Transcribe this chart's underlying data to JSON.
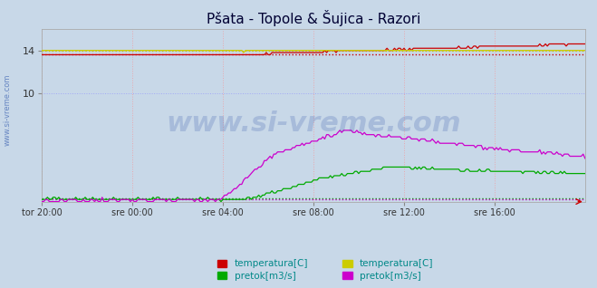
{
  "title": "Pšata - Topole & Šujica - Razori",
  "title_fontsize": 11,
  "fig_bg_color": "#c8d8e8",
  "plot_bg_color": "#c8d8e8",
  "ylim": [
    0,
    16
  ],
  "xlim": [
    0,
    288
  ],
  "xtick_positions": [
    0,
    48,
    96,
    144,
    192,
    240
  ],
  "xtick_labels": [
    "tor 20:00",
    "sre 00:00",
    "sre 04:00",
    "sre 08:00",
    "sre 12:00",
    "sre 16:00"
  ],
  "ytick_positions": [
    10,
    14
  ],
  "ytick_labels": [
    "10",
    "14"
  ],
  "watermark": "www.si-vreme.com",
  "watermark_color": "#3355aa",
  "watermark_alpha": 0.22,
  "watermark_fontsize": 22,
  "side_label": "www.si-vreme.com",
  "side_label_color": "#5577bb",
  "side_label_fontsize": 6,
  "grid_v_color": "#ff8888",
  "grid_h_color": "#8888ff",
  "grid_alpha": 0.6,
  "n_points": 289,
  "colors": {
    "temp1": "#cc0000",
    "flow1": "#00aa00",
    "temp2": "#cccc00",
    "flow2": "#cc00cc"
  },
  "avg_temp1": 13.6,
  "avg_flow1": 0.28,
  "avg_temp2": 13.95,
  "avg_flow2": 0.18,
  "legend_items": [
    {
      "label": "temperatura[C]",
      "color": "#cc0000"
    },
    {
      "label": "pretok[m3/s]",
      "color": "#00aa00"
    },
    {
      "label": "temperatura[C]",
      "color": "#cccc00"
    },
    {
      "label": "pretok[m3/s]",
      "color": "#cc00cc"
    }
  ],
  "legend_fontsize": 7.5
}
